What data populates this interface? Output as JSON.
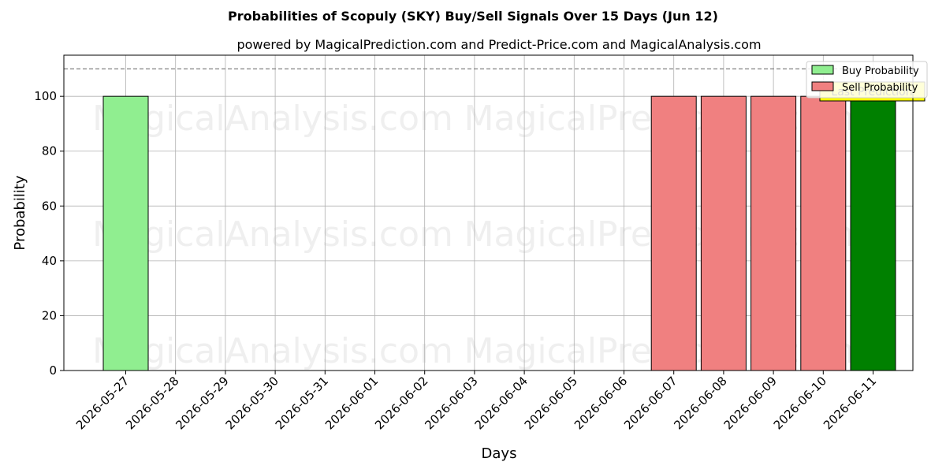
{
  "chart_data": {
    "type": "bar",
    "title": "Probabilities of Scopuly (SKY) Buy/Sell Signals Over 15 Days (Jun 12)",
    "subtitle": "powered by MagicalPrediction.com and Predict-Price.com and MagicalAnalysis.com",
    "xlabel": "Days",
    "ylabel": "Probability",
    "ylim": [
      0,
      115
    ],
    "yticks": [
      0,
      20,
      40,
      60,
      80,
      100
    ],
    "grid": true,
    "reference_line": 110,
    "categories": [
      "2026-05-27",
      "2026-05-28",
      "2026-05-29",
      "2026-05-30",
      "2026-05-31",
      "2026-06-01",
      "2026-06-02",
      "2026-06-03",
      "2026-06-04",
      "2026-06-05",
      "2026-06-06",
      "2026-06-07",
      "2026-06-08",
      "2026-06-09",
      "2026-06-10",
      "2026-06-11"
    ],
    "series": [
      {
        "name": "Buy Probability",
        "color": "#90ee90",
        "values": [
          100,
          0,
          0,
          0,
          0,
          0,
          0,
          0,
          0,
          0,
          0,
          0,
          0,
          0,
          0,
          0
        ]
      },
      {
        "name": "Sell Probability",
        "color": "#f08080",
        "values": [
          0,
          0,
          0,
          0,
          0,
          0,
          0,
          0,
          0,
          0,
          0,
          100,
          100,
          100,
          100,
          0
        ]
      }
    ],
    "highlight": {
      "category": "2026-06-11",
      "value": 100,
      "color": "#008000",
      "label": "Last Prediction",
      "label_color": "#ffff00"
    },
    "legend_position": "top-right",
    "watermarks": [
      "MagicalAnalysis.com",
      "MagicalPrediction.com"
    ]
  }
}
